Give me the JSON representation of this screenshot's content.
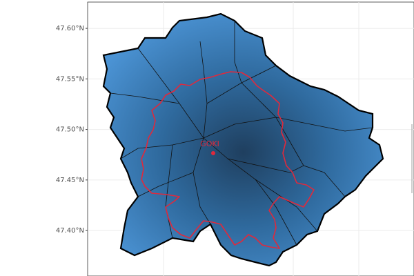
{
  "chart_data": {
    "type": "map",
    "ylim": [
      47.355,
      47.626
    ],
    "yticks": [
      {
        "value": 47.4,
        "label": "47.40°N"
      },
      {
        "value": 47.45,
        "label": "47.45°N"
      },
      {
        "value": 47.5,
        "label": "47.50°N"
      },
      {
        "value": 47.55,
        "label": "47.55°N"
      },
      {
        "value": 47.6,
        "label": "47.60°N"
      }
    ],
    "grid": true,
    "annotation": "GOKI"
  }
}
